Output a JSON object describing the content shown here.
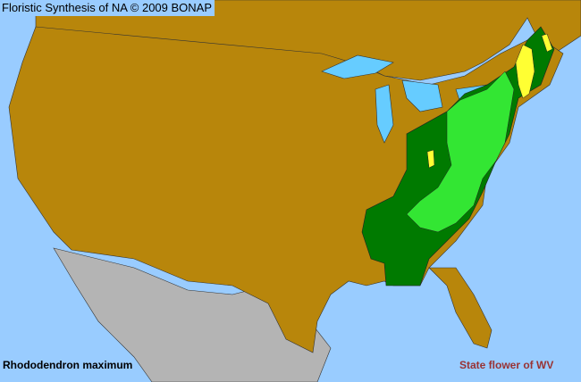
{
  "map": {
    "title": "Floristic Synthesis of NA © 2009 BONAP",
    "species": "Rhododendron maximum",
    "note": "State flower of WV",
    "colors": {
      "ocean": "#99ccff",
      "lakes": "#66ccff",
      "absent": "#b8860b",
      "outside_area": "#b4b4b4",
      "present_state": "#007a00",
      "present_county": "#33e633",
      "rare_county": "#ffff33"
    }
  }
}
